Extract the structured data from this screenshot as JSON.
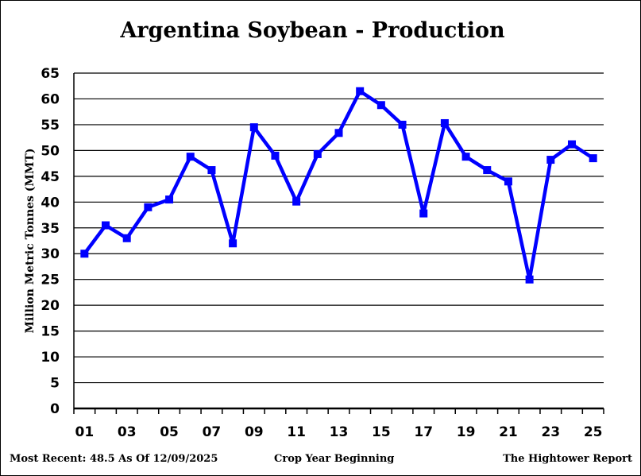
{
  "chart_data": {
    "type": "line",
    "title": "Argentina Soybean - Production",
    "xlabel": "Crop Year Beginning",
    "ylabel": "Million Metric Tonnes (MMT)",
    "ylim": [
      0,
      65
    ],
    "yticks": [
      0,
      5,
      10,
      15,
      20,
      25,
      30,
      35,
      40,
      45,
      50,
      55,
      60,
      65
    ],
    "x": [
      "01",
      "02",
      "03",
      "04",
      "05",
      "06",
      "07",
      "08",
      "09",
      "10",
      "11",
      "12",
      "13",
      "14",
      "15",
      "16",
      "17",
      "18",
      "19",
      "20",
      "21",
      "22",
      "23",
      "24",
      "25"
    ],
    "xtick_labels": [
      "01",
      "03",
      "05",
      "07",
      "09",
      "11",
      "13",
      "15",
      "17",
      "19",
      "21",
      "23",
      "25"
    ],
    "series": [
      {
        "color": "#0000ff",
        "values": [
          30.0,
          35.5,
          33.0,
          39.0,
          40.5,
          48.8,
          46.2,
          32.0,
          54.5,
          49.0,
          40.1,
          49.3,
          53.4,
          61.5,
          58.8,
          55.0,
          37.8,
          55.3,
          48.8,
          46.2,
          44.0,
          25.0,
          48.2,
          51.2,
          48.5
        ]
      }
    ],
    "grid": true,
    "gridline_color": "#000000",
    "legend": "none"
  },
  "footer": {
    "most_recent": "Most Recent: 48.5 As Of 12/09/2025",
    "source": "The Hightower Report"
  }
}
